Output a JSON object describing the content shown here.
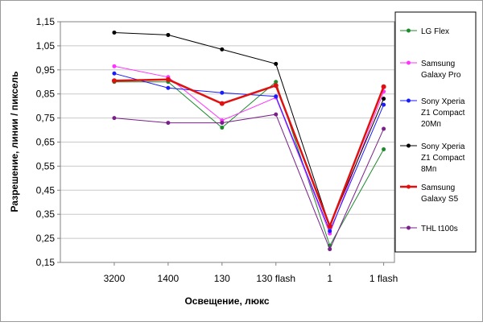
{
  "chart_data": {
    "type": "line",
    "title": "",
    "xlabel": "Освещение, люкс",
    "ylabel": "Разрешение, линии / пиксель",
    "categories": [
      "3200",
      "1400",
      "130",
      "130 flash",
      "1",
      "1 flash"
    ],
    "ylim": [
      0.15,
      1.15
    ],
    "yticks": [
      "0,15",
      "0,25",
      "0,35",
      "0,45",
      "0,55",
      "0,65",
      "0,75",
      "0,85",
      "0,95",
      "1,05",
      "1,15"
    ],
    "grid": "horizontal",
    "legend": "right",
    "series": [
      {
        "name_lines": [
          "LG Flex"
        ],
        "color": "#1e8a2e",
        "marker": "circle",
        "thick": false,
        "values": [
          0.9,
          0.9,
          0.71,
          0.9,
          0.22,
          0.62
        ]
      },
      {
        "name_lines": [
          "Samsung",
          "Galaxy Pro"
        ],
        "color": "#ff33ff",
        "marker": "circle",
        "thick": false,
        "values": [
          0.965,
          0.92,
          0.74,
          0.835,
          0.27,
          0.86
        ]
      },
      {
        "name_lines": [
          "Sony Xperia",
          "Z1 Compact",
          "20Мп"
        ],
        "color": "#1a1aff",
        "marker": "circle",
        "thick": false,
        "values": [
          0.935,
          0.875,
          0.855,
          0.84,
          0.28,
          0.805
        ]
      },
      {
        "name_lines": [
          "Sony Xperia",
          "Z1 Compact",
          "8Мп"
        ],
        "color": "#000000",
        "marker": "circle",
        "thick": false,
        "values": [
          1.105,
          1.095,
          1.035,
          0.975,
          0.3,
          0.83
        ]
      },
      {
        "name_lines": [
          "Samsung",
          "Galaxy S5"
        ],
        "color": "#e01010",
        "marker": "circle",
        "thick": true,
        "values": [
          0.905,
          0.91,
          0.81,
          0.885,
          0.3,
          0.88
        ]
      },
      {
        "name_lines": [
          "THL t100s"
        ],
        "color": "#7a1f8a",
        "marker": "circle",
        "thick": false,
        "values": [
          0.75,
          0.73,
          0.73,
          0.765,
          0.205,
          0.705
        ]
      }
    ]
  }
}
